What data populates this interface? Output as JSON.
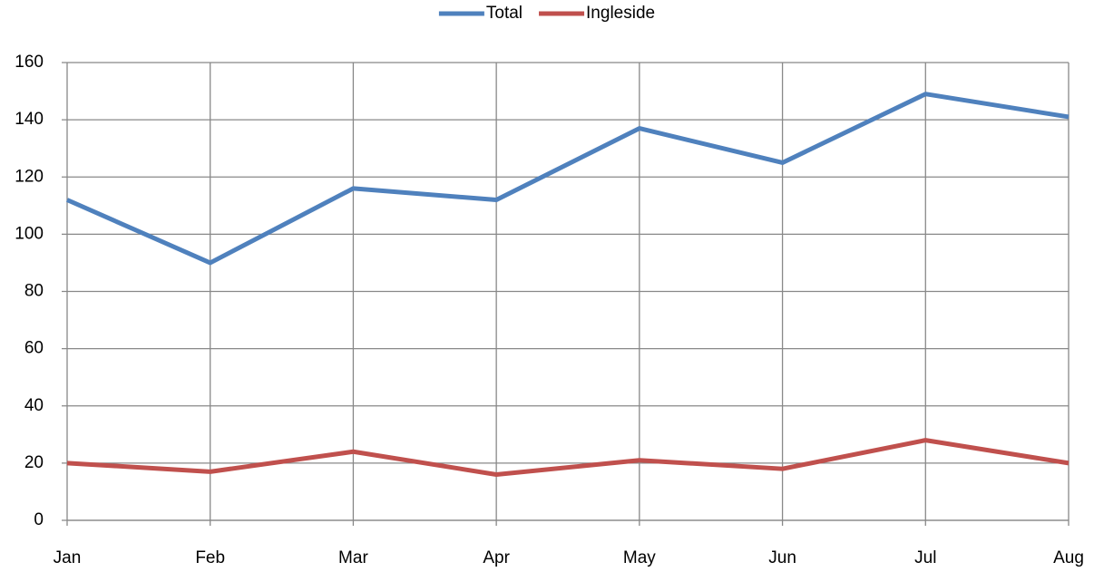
{
  "chart_data": {
    "type": "line",
    "categories": [
      "Jan",
      "Feb",
      "Mar",
      "Apr",
      "May",
      "Jun",
      "Jul",
      "Aug"
    ],
    "series": [
      {
        "name": "Total",
        "color": "#4f81bd",
        "values": [
          112,
          90,
          116,
          112,
          137,
          125,
          149,
          141
        ]
      },
      {
        "name": "Ingleside",
        "color": "#c0504d",
        "values": [
          20,
          17,
          24,
          16,
          21,
          18,
          28,
          20
        ]
      }
    ],
    "ylim": [
      0,
      160
    ],
    "yticks": [
      0,
      20,
      40,
      60,
      80,
      100,
      120,
      140,
      160
    ],
    "grid": true,
    "legend": "top"
  }
}
